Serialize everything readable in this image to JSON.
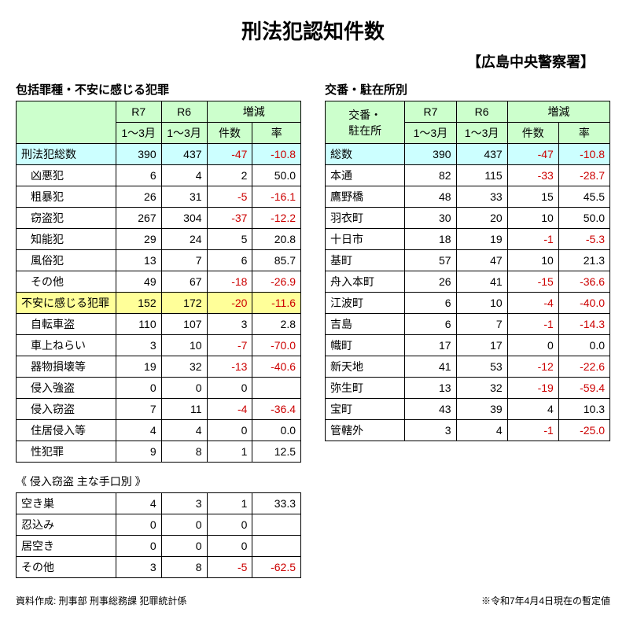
{
  "title": "刑法犯認知件数",
  "subtitle": "【広島中央警察署】",
  "leftSection": "包括罪種・不安に感じる犯罪",
  "rightSection": "交番・駐在所別",
  "headers": {
    "r7": "R7",
    "r6": "R6",
    "period": "1～3月",
    "diff": "増減",
    "count": "件数",
    "rate": "率",
    "koban": "交番・\n駐在所"
  },
  "leftRows": [
    {
      "label": "刑法犯総数",
      "r7": "390",
      "r6": "437",
      "diff": "-47",
      "rate": "-10.8",
      "cls": "row-blue",
      "indent": false,
      "negDiff": true,
      "negRate": true
    },
    {
      "label": "凶悪犯",
      "r7": "6",
      "r6": "4",
      "diff": "2",
      "rate": "50.0",
      "indent": true
    },
    {
      "label": "粗暴犯",
      "r7": "26",
      "r6": "31",
      "diff": "-5",
      "rate": "-16.1",
      "indent": true,
      "negDiff": true,
      "negRate": true
    },
    {
      "label": "窃盗犯",
      "r7": "267",
      "r6": "304",
      "diff": "-37",
      "rate": "-12.2",
      "indent": true,
      "negDiff": true,
      "negRate": true
    },
    {
      "label": "知能犯",
      "r7": "29",
      "r6": "24",
      "diff": "5",
      "rate": "20.8",
      "indent": true
    },
    {
      "label": "風俗犯",
      "r7": "13",
      "r6": "7",
      "diff": "6",
      "rate": "85.7",
      "indent": true
    },
    {
      "label": "その他",
      "r7": "49",
      "r6": "67",
      "diff": "-18",
      "rate": "-26.9",
      "indent": true,
      "negDiff": true,
      "negRate": true
    },
    {
      "label": "不安に感じる犯罪",
      "r7": "152",
      "r6": "172",
      "diff": "-20",
      "rate": "-11.6",
      "cls": "row-yellow",
      "indent": false,
      "negDiff": true,
      "negRate": true
    },
    {
      "label": "自転車盗",
      "r7": "110",
      "r6": "107",
      "diff": "3",
      "rate": "2.8",
      "indent": true
    },
    {
      "label": "車上ねらい",
      "r7": "3",
      "r6": "10",
      "diff": "-7",
      "rate": "-70.0",
      "indent": true,
      "negDiff": true,
      "negRate": true
    },
    {
      "label": "器物損壊等",
      "r7": "19",
      "r6": "32",
      "diff": "-13",
      "rate": "-40.6",
      "indent": true,
      "negDiff": true,
      "negRate": true
    },
    {
      "label": "侵入強盗",
      "r7": "0",
      "r6": "0",
      "diff": "0",
      "rate": "",
      "indent": true
    },
    {
      "label": "侵入窃盗",
      "r7": "7",
      "r6": "11",
      "diff": "-4",
      "rate": "-36.4",
      "indent": true,
      "negDiff": true,
      "negRate": true
    },
    {
      "label": "住居侵入等",
      "r7": "4",
      "r6": "4",
      "diff": "0",
      "rate": "0.0",
      "indent": true
    },
    {
      "label": "性犯罪",
      "r7": "9",
      "r6": "8",
      "diff": "1",
      "rate": "12.5",
      "indent": true
    }
  ],
  "subTableTitle": "《 侵入窃盗 主な手口別 》",
  "subRows": [
    {
      "label": "空き巣",
      "r7": "4",
      "r6": "3",
      "diff": "1",
      "rate": "33.3"
    },
    {
      "label": "忍込み",
      "r7": "0",
      "r6": "0",
      "diff": "0",
      "rate": ""
    },
    {
      "label": "居空き",
      "r7": "0",
      "r6": "0",
      "diff": "0",
      "rate": ""
    },
    {
      "label": "その他",
      "r7": "3",
      "r6": "8",
      "diff": "-5",
      "rate": "-62.5",
      "negDiff": true,
      "negRate": true
    }
  ],
  "rightRows": [
    {
      "label": "総数",
      "r7": "390",
      "r6": "437",
      "diff": "-47",
      "rate": "-10.8",
      "cls": "row-blue",
      "negDiff": true,
      "negRate": true
    },
    {
      "label": "本通",
      "r7": "82",
      "r6": "115",
      "diff": "-33",
      "rate": "-28.7",
      "negDiff": true,
      "negRate": true
    },
    {
      "label": "鷹野橋",
      "r7": "48",
      "r6": "33",
      "diff": "15",
      "rate": "45.5"
    },
    {
      "label": "羽衣町",
      "r7": "30",
      "r6": "20",
      "diff": "10",
      "rate": "50.0"
    },
    {
      "label": "十日市",
      "r7": "18",
      "r6": "19",
      "diff": "-1",
      "rate": "-5.3",
      "negDiff": true,
      "negRate": true
    },
    {
      "label": "基町",
      "r7": "57",
      "r6": "47",
      "diff": "10",
      "rate": "21.3"
    },
    {
      "label": "舟入本町",
      "r7": "26",
      "r6": "41",
      "diff": "-15",
      "rate": "-36.6",
      "negDiff": true,
      "negRate": true
    },
    {
      "label": "江波町",
      "r7": "6",
      "r6": "10",
      "diff": "-4",
      "rate": "-40.0",
      "negDiff": true,
      "negRate": true
    },
    {
      "label": "吉島",
      "r7": "6",
      "r6": "7",
      "diff": "-1",
      "rate": "-14.3",
      "negDiff": true,
      "negRate": true
    },
    {
      "label": "幟町",
      "r7": "17",
      "r6": "17",
      "diff": "0",
      "rate": "0.0"
    },
    {
      "label": "新天地",
      "r7": "41",
      "r6": "53",
      "diff": "-12",
      "rate": "-22.6",
      "negDiff": true,
      "negRate": true
    },
    {
      "label": "弥生町",
      "r7": "13",
      "r6": "32",
      "diff": "-19",
      "rate": "-59.4",
      "negDiff": true,
      "negRate": true
    },
    {
      "label": "宝町",
      "r7": "43",
      "r6": "39",
      "diff": "4",
      "rate": "10.3"
    },
    {
      "label": "管轄外",
      "r7": "3",
      "r6": "4",
      "diff": "-1",
      "rate": "-25.0",
      "negDiff": true,
      "negRate": true
    }
  ],
  "footerLeft": "資料作成: 刑事部 刑事総務課 犯罪統計係",
  "footerRight": "※令和7年4月4日現在の暫定値"
}
